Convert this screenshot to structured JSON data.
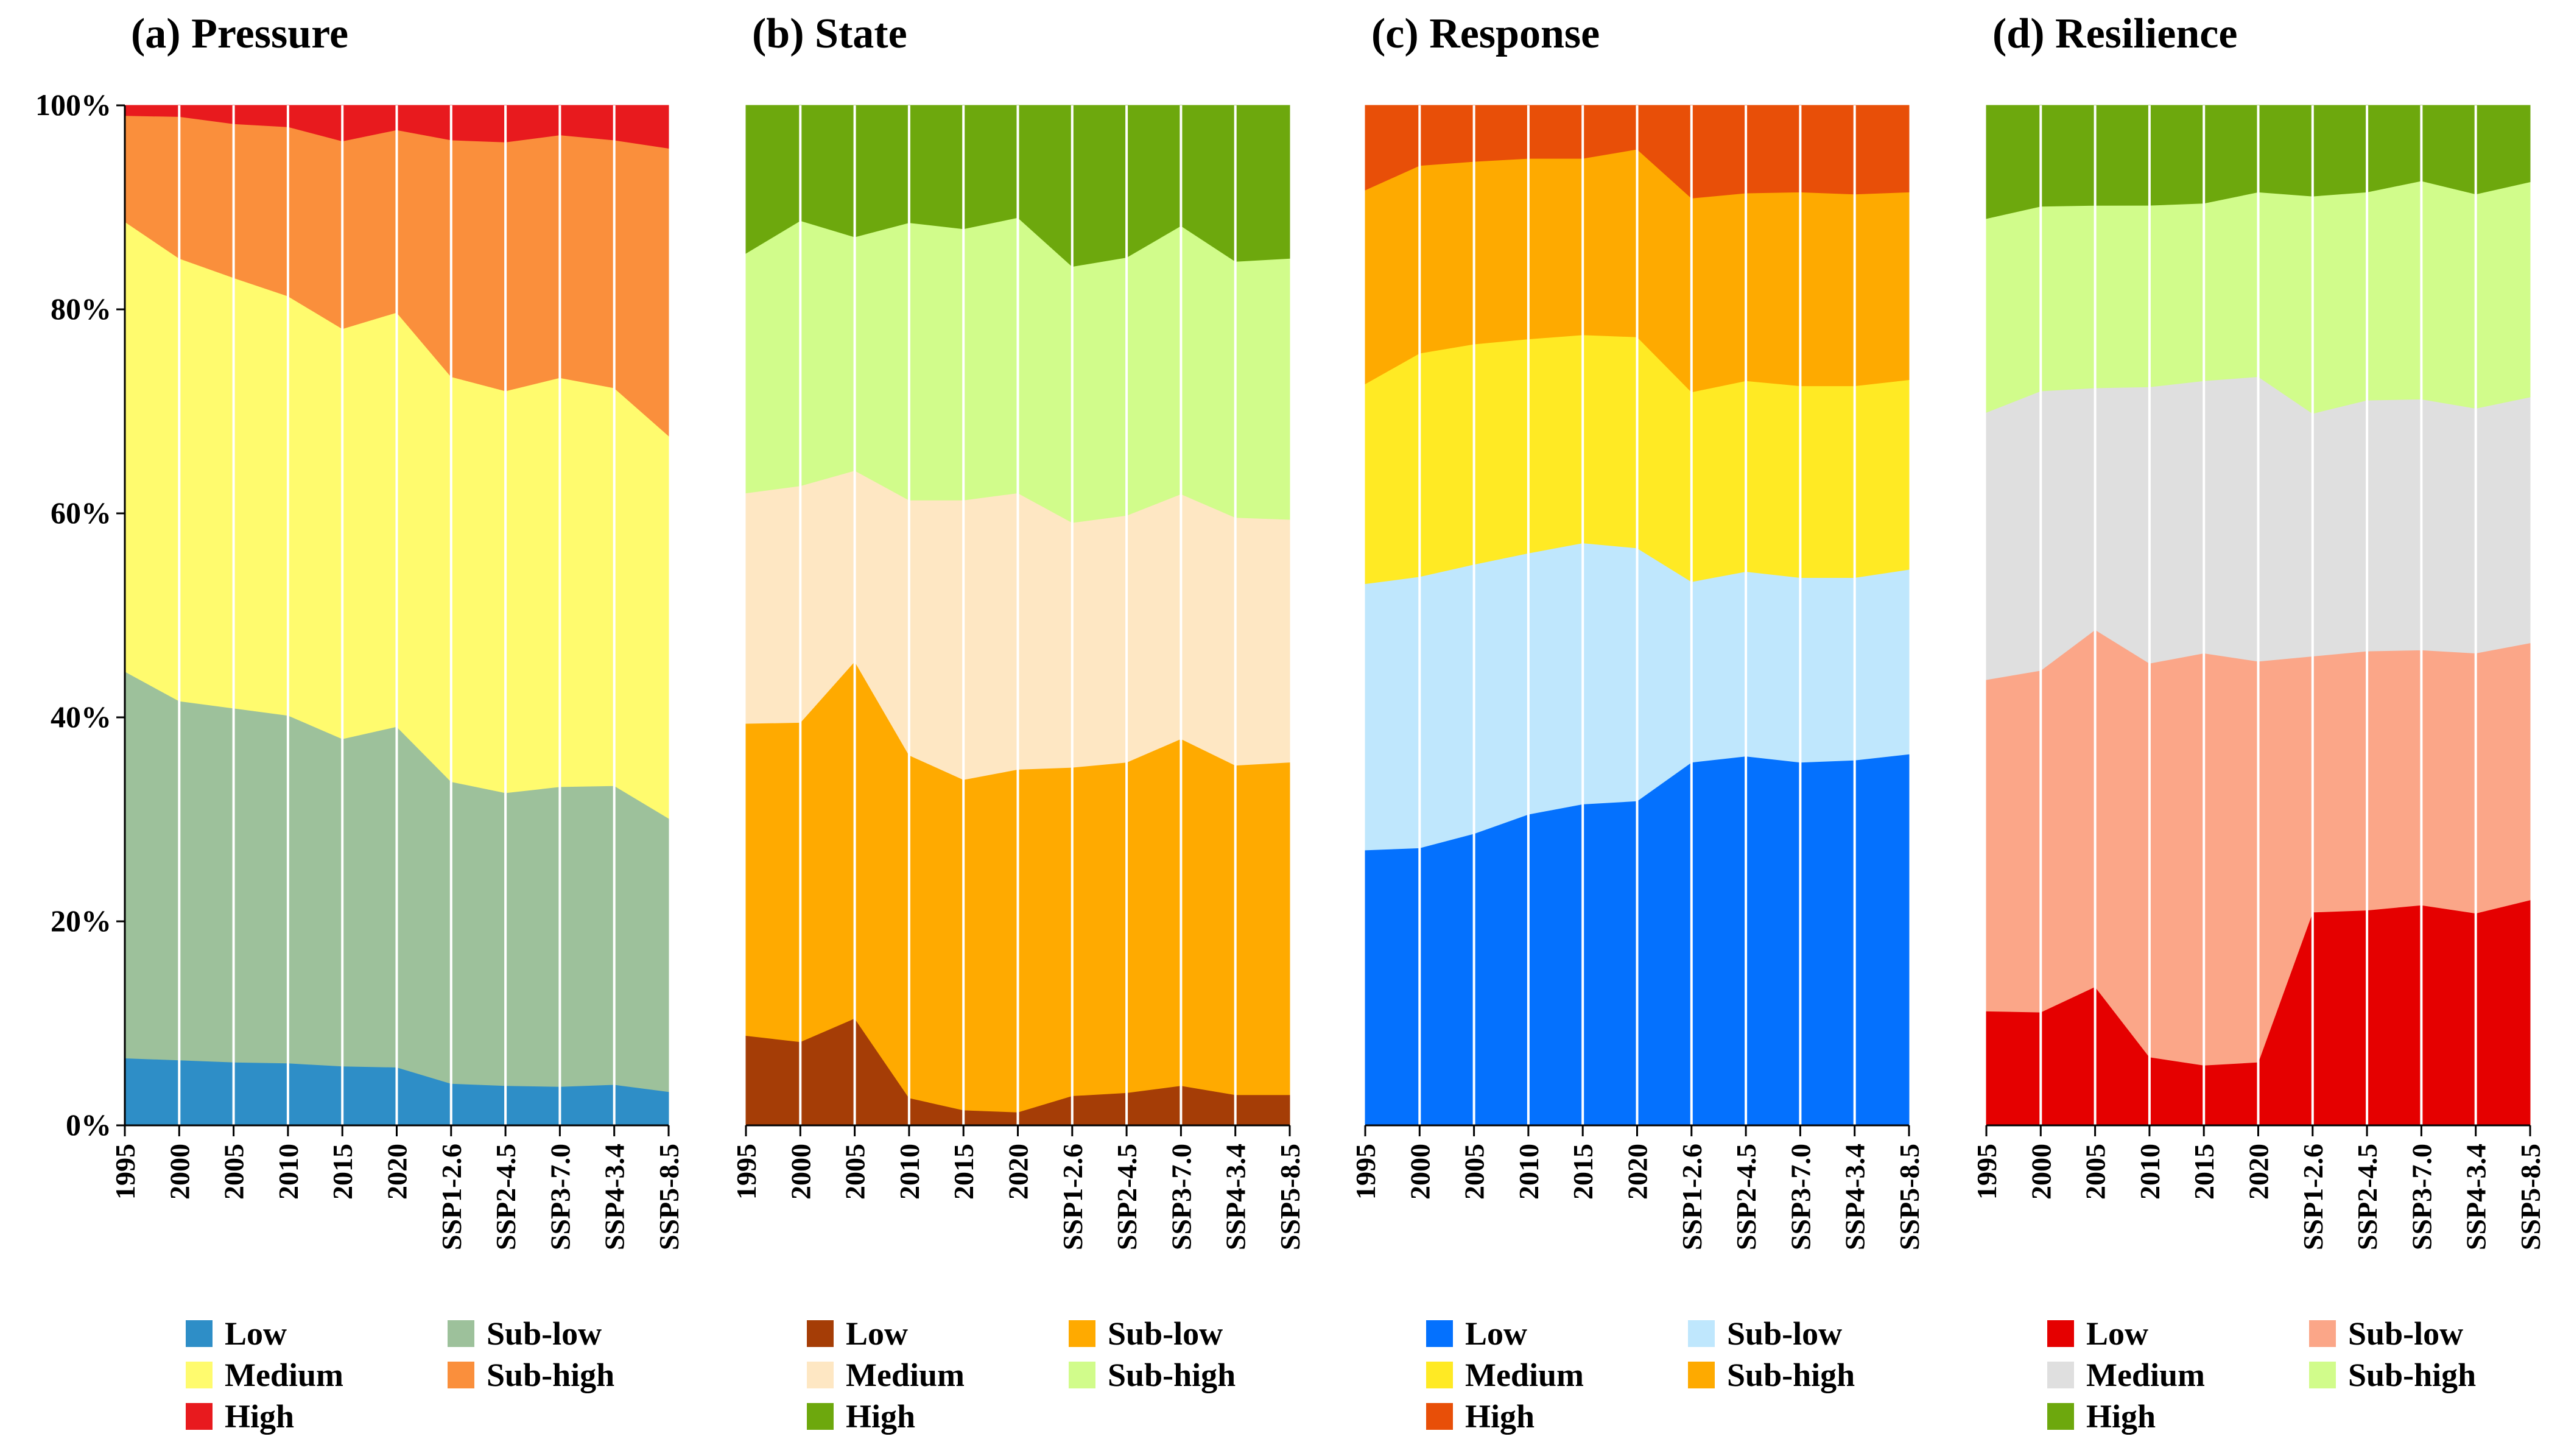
{
  "colors": {
    "pressure": [
      "#2E8EC7",
      "#9DC19B",
      "#FFFB6E",
      "#FA8F3C",
      "#E81A1E"
    ],
    "state": [
      "#A53D06",
      "#FFAA00",
      "#FEE7C3",
      "#D1FC8B",
      "#6DA80D"
    ],
    "response": [
      "#0471FE",
      "#BFE7FD",
      "#FFEA24",
      "#FEAA00",
      "#E84F08"
    ],
    "resilience": [
      "#E50000",
      "#FBA688",
      "#DFDFDF",
      "#D1FC8B",
      "#6DA80D"
    ]
  },
  "chart_data": [
    {
      "id": "pressure",
      "type": "area",
      "stacked": true,
      "title": "(a) Pressure",
      "categories": [
        "1995",
        "2000",
        "2005",
        "2010",
        "2015",
        "2020",
        "SSP1-2.6",
        "SSP2-4.5",
        "SSP3-7.0",
        "SSP4-3.4",
        "SSP5-8.5"
      ],
      "ylim": [
        0,
        100
      ],
      "yticks": [
        "0%",
        "20%",
        "40%",
        "60%",
        "80%",
        "100%"
      ],
      "grid": "vertical",
      "legend_order": [
        "Low",
        "Sub-low",
        "Medium",
        "Sub-high",
        "High"
      ],
      "series": [
        {
          "name": "Low",
          "values": [
            6.6,
            6.4,
            6.2,
            6.1,
            5.8,
            5.7,
            4.1,
            3.9,
            3.8,
            4.0,
            3.3
          ]
        },
        {
          "name": "Sub-low",
          "values": [
            37.9,
            35.2,
            34.7,
            34.1,
            32.1,
            33.4,
            29.6,
            28.7,
            29.4,
            29.3,
            26.8
          ]
        },
        {
          "name": "Medium",
          "values": [
            44.1,
            43.4,
            42.2,
            41.1,
            40.2,
            40.6,
            39.7,
            39.4,
            40.1,
            39.0,
            37.5
          ]
        },
        {
          "name": "Sub-high",
          "values": [
            10.4,
            13.9,
            15.1,
            16.6,
            18.4,
            17.9,
            23.2,
            24.4,
            23.8,
            24.3,
            28.2
          ]
        },
        {
          "name": "High",
          "values": [
            1.0,
            1.1,
            1.8,
            2.1,
            3.5,
            2.4,
            3.4,
            3.6,
            2.9,
            3.4,
            4.2
          ]
        }
      ]
    },
    {
      "id": "state",
      "type": "area",
      "stacked": true,
      "title": "(b) State",
      "categories": [
        "1995",
        "2000",
        "2005",
        "2010",
        "2015",
        "2020",
        "SSP1-2.6",
        "SSP2-4.5",
        "SSP3-7.0",
        "SSP4-3.4",
        "SSP5-8.5"
      ],
      "ylim": [
        0,
        100
      ],
      "grid": "vertical",
      "legend_order": [
        "Low",
        "Sub-low",
        "Medium",
        "Sub-high",
        "High"
      ],
      "series": [
        {
          "name": "Low",
          "values": [
            8.8,
            8.2,
            10.5,
            2.7,
            1.5,
            1.3,
            2.9,
            3.2,
            3.9,
            3.0,
            3.0
          ]
        },
        {
          "name": "Sub-low",
          "values": [
            30.6,
            31.3,
            35.0,
            33.6,
            32.4,
            33.6,
            32.2,
            32.4,
            34.0,
            32.3,
            32.6
          ]
        },
        {
          "name": "Medium",
          "values": [
            22.6,
            23.2,
            18.7,
            25.0,
            27.4,
            27.1,
            24.0,
            24.2,
            24.0,
            24.3,
            23.8
          ]
        },
        {
          "name": "Sub-high",
          "values": [
            23.5,
            26.0,
            22.9,
            27.2,
            26.6,
            27.0,
            25.1,
            25.3,
            26.3,
            25.1,
            25.6
          ]
        },
        {
          "name": "High",
          "values": [
            14.5,
            11.3,
            12.9,
            11.5,
            12.1,
            11.0,
            15.8,
            14.9,
            11.8,
            15.3,
            15.0
          ]
        }
      ]
    },
    {
      "id": "response",
      "type": "area",
      "stacked": true,
      "title": "(c) Response",
      "categories": [
        "1995",
        "2000",
        "2005",
        "2010",
        "2015",
        "2020",
        "SSP1-2.6",
        "SSP2-4.5",
        "SSP3-7.0",
        "SSP4-3.4",
        "SSP5-8.5"
      ],
      "ylim": [
        0,
        100
      ],
      "grid": "vertical",
      "legend_order": [
        "Low",
        "Sub-low",
        "Medium",
        "Sub-high",
        "High"
      ],
      "series": [
        {
          "name": "Low",
          "values": [
            27.0,
            27.2,
            28.6,
            30.5,
            31.5,
            31.8,
            35.6,
            36.2,
            35.6,
            35.8,
            36.4
          ]
        },
        {
          "name": "Sub-low",
          "values": [
            26.1,
            26.6,
            26.4,
            25.6,
            25.6,
            24.8,
            17.7,
            18.1,
            18.1,
            17.9,
            18.1
          ]
        },
        {
          "name": "Medium",
          "values": [
            19.6,
            21.9,
            21.6,
            21.0,
            20.4,
            20.7,
            18.6,
            18.7,
            18.8,
            18.8,
            18.6
          ]
        },
        {
          "name": "Sub-high",
          "values": [
            19.0,
            18.4,
            17.9,
            17.7,
            17.3,
            18.4,
            19.0,
            18.4,
            19.0,
            18.8,
            18.4
          ]
        },
        {
          "name": "High",
          "values": [
            8.3,
            5.9,
            5.5,
            5.2,
            5.2,
            4.3,
            9.1,
            8.6,
            8.5,
            8.7,
            8.5
          ]
        }
      ]
    },
    {
      "id": "resilience",
      "type": "area",
      "stacked": true,
      "title": "(d) Resilience",
      "categories": [
        "1995",
        "2000",
        "2005",
        "2010",
        "2015",
        "2020",
        "SSP1-2.6",
        "SSP2-4.5",
        "SSP3-7.0",
        "SSP4-3.4",
        "SSP5-8.5"
      ],
      "ylim": [
        0,
        100
      ],
      "grid": "vertical",
      "legend_order": [
        "Low",
        "Sub-low",
        "Medium",
        "Sub-high",
        "High"
      ],
      "series": [
        {
          "name": "Low",
          "values": [
            11.2,
            11.1,
            13.6,
            6.7,
            5.9,
            6.2,
            20.9,
            21.1,
            21.6,
            20.8,
            22.1
          ]
        },
        {
          "name": "Sub-low",
          "values": [
            32.5,
            33.5,
            35.0,
            38.6,
            40.4,
            39.3,
            25.1,
            25.4,
            25.0,
            25.5,
            25.2
          ]
        },
        {
          "name": "Medium",
          "values": [
            26.2,
            27.4,
            23.7,
            27.1,
            26.7,
            27.9,
            23.8,
            24.6,
            24.6,
            24.0,
            24.1
          ]
        },
        {
          "name": "Sub-high",
          "values": [
            19.0,
            18.1,
            17.9,
            17.8,
            17.4,
            18.1,
            21.3,
            20.4,
            21.4,
            21.0,
            21.1
          ]
        },
        {
          "name": "High",
          "values": [
            11.1,
            9.9,
            9.8,
            9.8,
            9.6,
            8.5,
            8.9,
            8.5,
            7.4,
            8.7,
            7.5
          ]
        }
      ]
    }
  ]
}
